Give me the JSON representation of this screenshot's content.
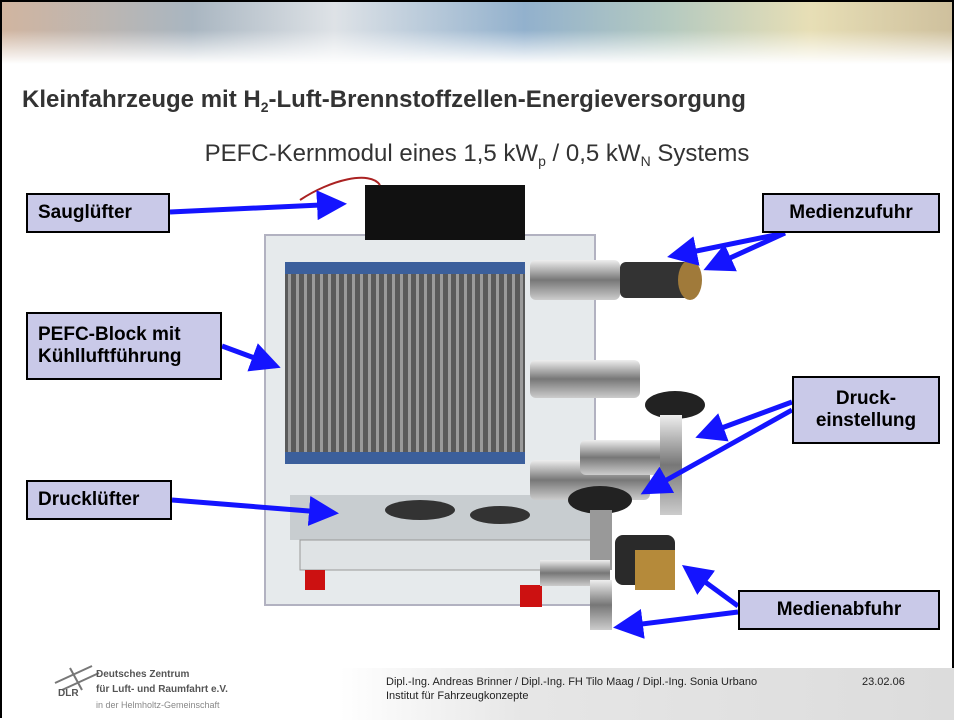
{
  "header": {
    "title": [
      "Kleinfahrzeuge mit H",
      "2",
      "-Luft-Brennstoffzellen-Energieversorgung"
    ],
    "subtitle": [
      "PEFC-Kernmodul eines 1,5 kW",
      "p",
      " / 0,5 kW",
      "N",
      " Systems"
    ]
  },
  "labels": {
    "sauglufter": "Sauglüfter",
    "medienzufuhr": "Medienzufuhr",
    "pefc_block": [
      "PEFC-Block mit",
      "Kühlluftführung"
    ],
    "druckeinstellung": [
      "Druck-",
      "einstellung"
    ],
    "drucklufter": "Drucklüfter",
    "medienabfuhr": "Medienabfuhr"
  },
  "footer": {
    "logo": {
      "mark": "DLR",
      "lines": [
        "Deutsches Zentrum",
        "für Luft- und Raumfahrt e.V.",
        "in der Helmholtz-Gemeinschaft"
      ]
    },
    "authors": "Dipl.-Ing. Andreas Brinner / Dipl.-Ing. FH Tilo Maag / Dipl.-Ing. Sonia Urbano",
    "institute": "Institut für Fahrzeugkonzepte",
    "date": "23.02.06"
  }
}
